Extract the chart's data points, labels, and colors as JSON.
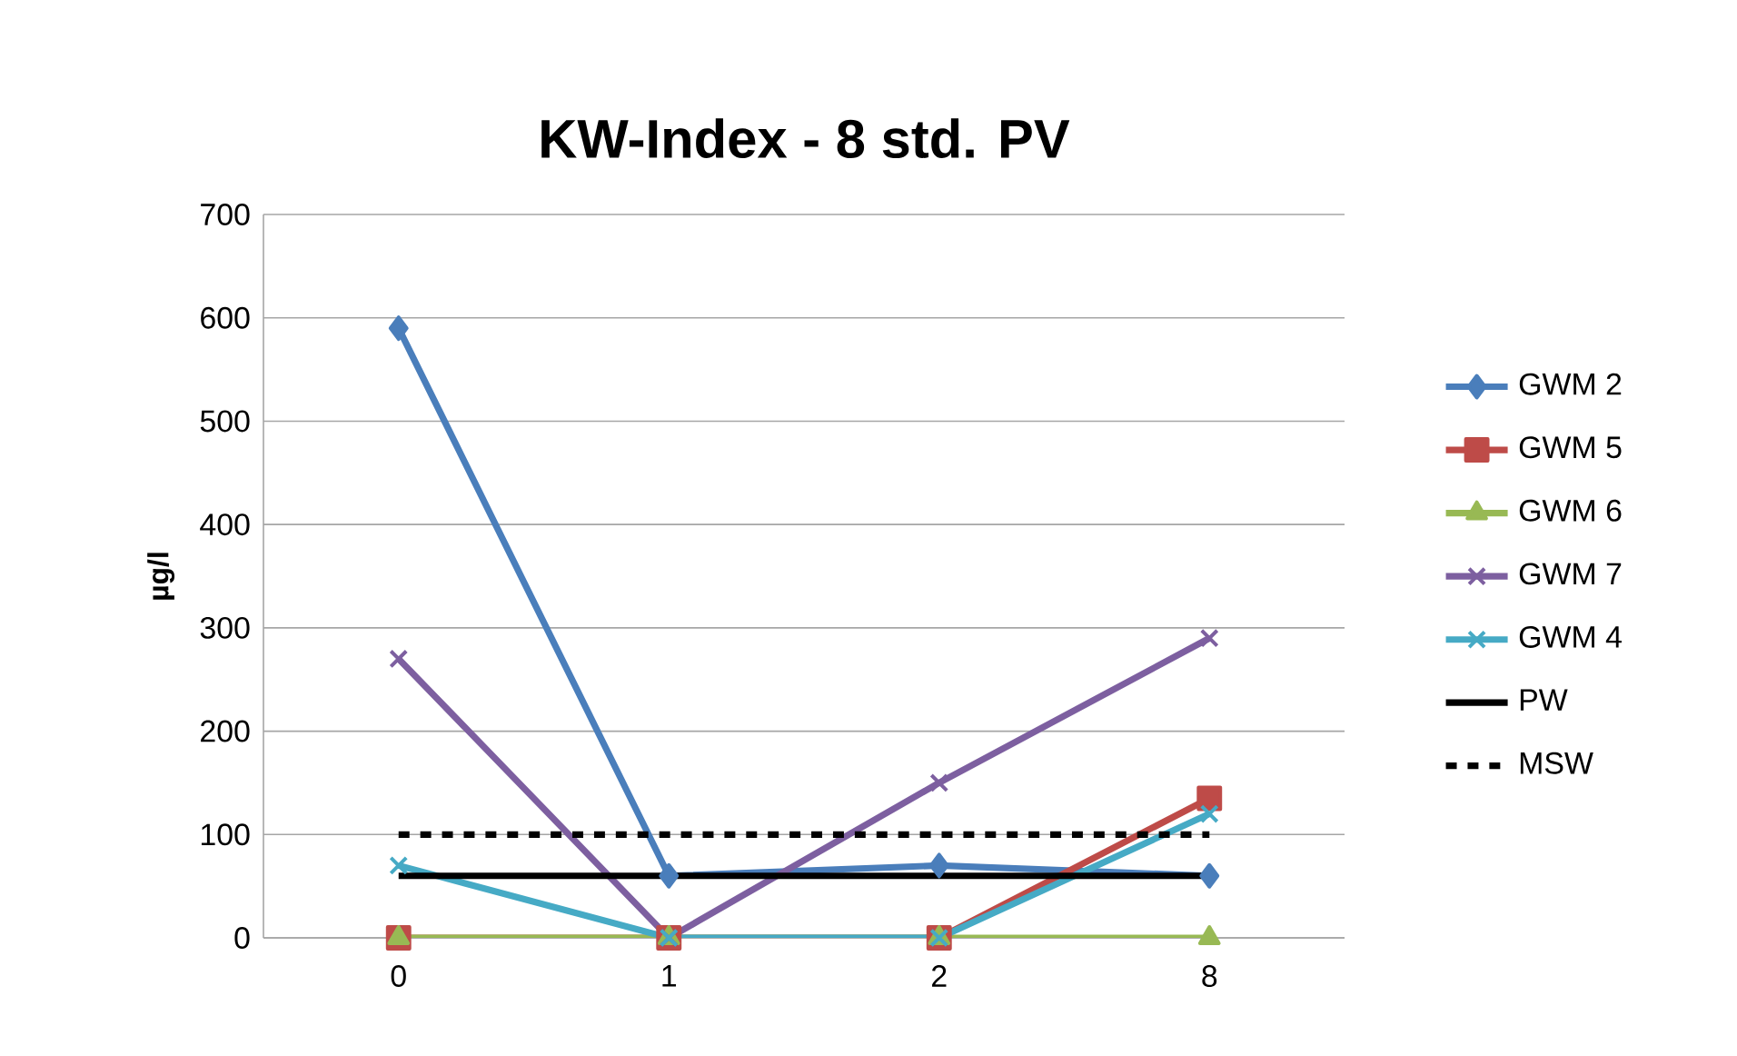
{
  "chart_data": {
    "type": "line",
    "title": "KW-Index - 8 std. PV",
    "ylabel": "µg/l",
    "categories": [
      "0",
      "1",
      "2",
      "8"
    ],
    "series": [
      {
        "name": "GWM 2",
        "color": "#4a7ebb",
        "marker": "diamond",
        "values": [
          590,
          60,
          70,
          60
        ]
      },
      {
        "name": "GWM 5",
        "color": "#be4b48",
        "marker": "square",
        "values": [
          0,
          0,
          0,
          135
        ]
      },
      {
        "name": "GWM 6",
        "color": "#98b954",
        "marker": "triangle",
        "values": [
          0,
          0,
          0,
          0
        ]
      },
      {
        "name": "GWM 7",
        "color": "#7d5fa0",
        "marker": "cross",
        "values": [
          270,
          0,
          150,
          290
        ]
      },
      {
        "name": "GWM 4",
        "color": "#46aac5",
        "marker": "cross",
        "values": [
          70,
          0,
          0,
          120
        ]
      },
      {
        "name": "PW",
        "color": "#000000",
        "marker": "none",
        "line_style": "solid",
        "values": [
          60,
          60,
          60,
          60
        ]
      },
      {
        "name": "MSW",
        "color": "#000000",
        "marker": "none",
        "line_style": "dashed",
        "values": [
          100,
          100,
          100,
          100
        ]
      }
    ],
    "ylim": [
      0,
      700
    ],
    "yticks": [
      0,
      100,
      200,
      300,
      400,
      500,
      600,
      700
    ],
    "grid": "y",
    "legend": "right"
  }
}
